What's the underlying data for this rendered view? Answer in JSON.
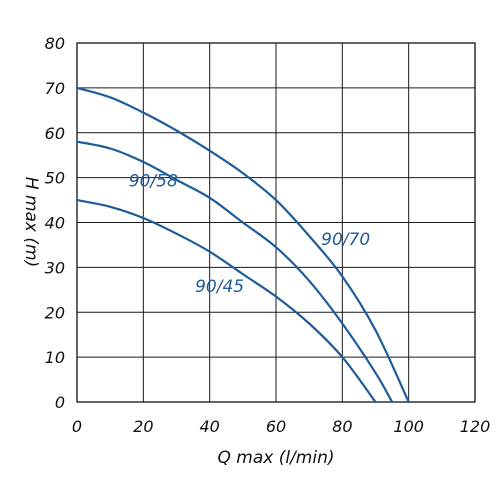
{
  "chart_data": {
    "type": "line",
    "xlabel": "Q max (l/min)",
    "ylabel": "H max (m)",
    "xlim": [
      0,
      120
    ],
    "ylim": [
      0,
      80
    ],
    "x_ticks": [
      0,
      20,
      40,
      60,
      80,
      100,
      120
    ],
    "y_ticks": [
      0,
      10,
      20,
      30,
      40,
      50,
      60,
      70,
      80
    ],
    "grid": true,
    "line_color": "#1f5c99",
    "series": [
      {
        "name": "90/70",
        "x": [
          0,
          10,
          20,
          30,
          40,
          50,
          60,
          70,
          80,
          90,
          100
        ],
        "y": [
          70,
          67.9,
          64.5,
          60.5,
          56,
          51,
          45,
          37,
          28,
          16,
          0
        ],
        "label_at": [
          81,
          35
        ]
      },
      {
        "name": "90/58",
        "x": [
          0,
          10,
          20,
          30,
          40,
          50,
          60,
          70,
          80,
          90,
          95
        ],
        "y": [
          58,
          56.5,
          53.5,
          49.5,
          45.5,
          40,
          34.5,
          27,
          17.5,
          6.5,
          0
        ],
        "label_at": [
          23,
          48
        ]
      },
      {
        "name": "90/45",
        "x": [
          0,
          10,
          20,
          30,
          40,
          50,
          60,
          70,
          80,
          90
        ],
        "y": [
          45,
          43.5,
          41,
          37.5,
          33.5,
          28.5,
          23.5,
          17.5,
          10,
          0
        ],
        "label_at": [
          43,
          24.5
        ]
      }
    ]
  }
}
